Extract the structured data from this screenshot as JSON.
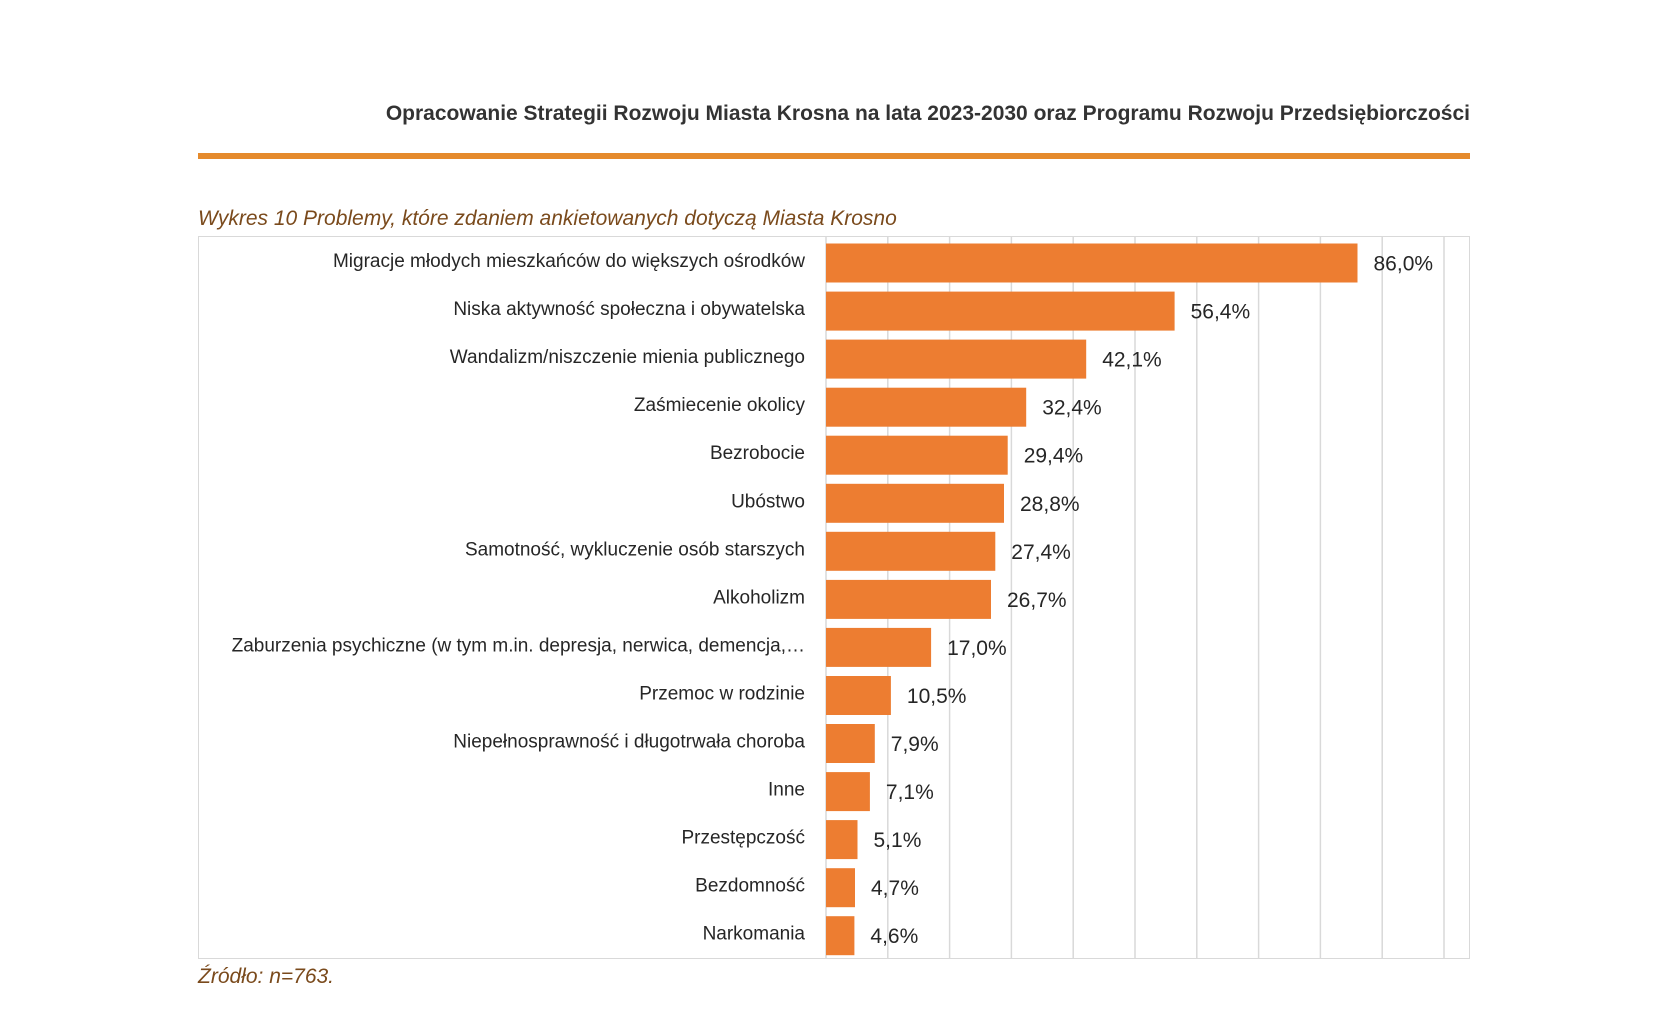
{
  "document": {
    "header_title": "Opracowanie Strategii Rozwoju Miasta Krosna na lata 2023-2030 oraz Programu Rozwoju Przedsiębiorczości",
    "accent_color": "#E58A2C",
    "caption": "Wykres 10 Problemy, które zdaniem ankietowanych dotyczą Miasta Krosno",
    "caption_color": "#7A4A1C",
    "source": "Źródło: n=763."
  },
  "chart_data": {
    "type": "bar",
    "orientation": "horizontal",
    "categories": [
      "Migracje młodych mieszkańców do większych ośrodków",
      "Niska aktywność społeczna i obywatelska",
      "Wandalizm/niszczenie mienia publicznego",
      "Zaśmiecenie okolicy",
      "Bezrobocie",
      "Ubóstwo",
      "Samotność, wykluczenie osób starszych",
      "Alkoholizm",
      "Zaburzenia psychiczne (w tym m.in. depresja, nerwica, demencja,…",
      "Przemoc w rodzinie",
      "Niepełnosprawność i długotrwała choroba",
      "Inne",
      "Przestępczość",
      "Bezdomność",
      "Narkomania"
    ],
    "values": [
      86.0,
      56.4,
      42.1,
      32.4,
      29.4,
      28.8,
      27.4,
      26.7,
      17.0,
      10.5,
      7.9,
      7.1,
      5.1,
      4.7,
      4.6
    ],
    "value_labels": [
      "86,0%",
      "56,4%",
      "42,1%",
      "32,4%",
      "29,4%",
      "28,8%",
      "27,4%",
      "26,7%",
      "17,0%",
      "10,5%",
      "7,9%",
      "7,1%",
      "5,1%",
      "4,7%",
      "4,6%"
    ],
    "unit": "%",
    "xlim": [
      0,
      100
    ],
    "gridline_step": 10,
    "grid": true,
    "legend": false,
    "bar_color": "#ED7D31",
    "gridline_color": "#D9D9D9"
  }
}
